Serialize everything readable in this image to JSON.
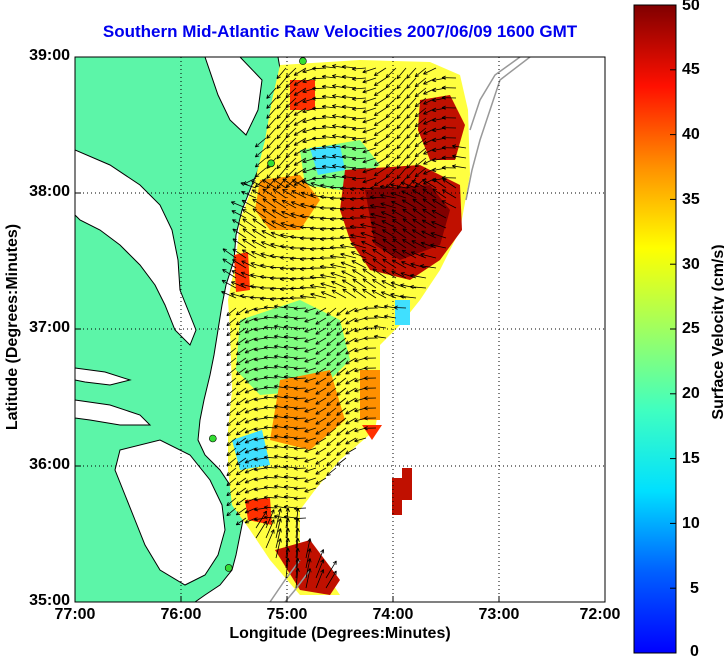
{
  "title": "Southern Mid-Atlantic Raw Velocities 2007/06/09 1600 GMT",
  "axes": {
    "xlabel": "Longitude (Degrees:Minutes)",
    "ylabel": "Latitude (Degrees:Minutes)",
    "x_ticks": [
      "77:00",
      "76:00",
      "75:00",
      "74:00",
      "73:00",
      "72:00"
    ],
    "y_ticks": [
      "39:00",
      "38:00",
      "37:00",
      "36:00",
      "35:00"
    ],
    "x_range": [
      -77,
      -72
    ],
    "y_range": [
      35,
      39
    ],
    "grid": "dotted"
  },
  "colorbar": {
    "label": "Surface Velocity (cm/s)",
    "ticks": [
      "50",
      "45",
      "40",
      "35",
      "30",
      "25",
      "20",
      "15",
      "10",
      "5",
      "0"
    ],
    "range": [
      0,
      50
    ],
    "colormap": "jet"
  },
  "colors": {
    "land": "#5cf5a8",
    "coastline": "#000000",
    "title": "#0000ee",
    "stations": "#33dd33"
  },
  "stations": [
    {
      "lon": -74.85,
      "lat": 38.97
    },
    {
      "lon": -75.15,
      "lat": 38.22
    },
    {
      "lon": -75.7,
      "lat": 36.2
    },
    {
      "lon": -75.55,
      "lat": 35.25
    }
  ]
}
